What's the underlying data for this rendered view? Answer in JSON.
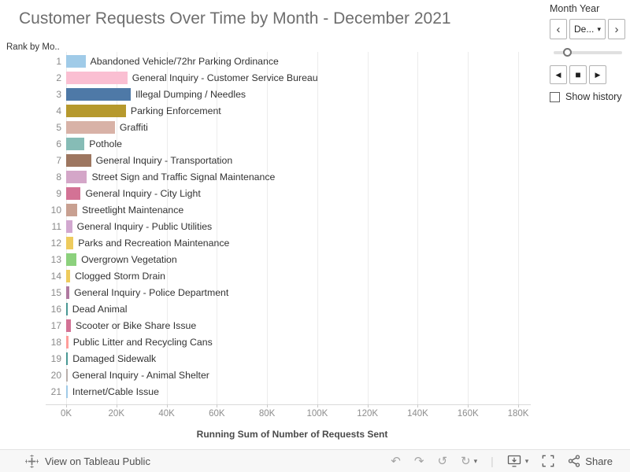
{
  "title": "Customer Requests Over Time by Month - December 2021",
  "rank_axis_label": "Rank by Mo..",
  "month_controls": {
    "label": "Month Year",
    "prev": "‹",
    "next": "›",
    "dropdown_value": "De...",
    "dropdown_caret": "▾",
    "step_back": "◀",
    "stop": "■",
    "step_forward": "▶",
    "show_history_label": "Show history",
    "show_history_checked": false
  },
  "chart_data": {
    "type": "bar",
    "orientation": "horizontal",
    "title": "Customer Requests Over Time by Month - December 2021",
    "xlabel": "Running Sum of Number of Requests Sent",
    "ylabel": "Rank by Month",
    "xlim": [
      0,
      180000
    ],
    "xtick_labels": [
      "0K",
      "20K",
      "40K",
      "60K",
      "80K",
      "100K",
      "120K",
      "140K",
      "160K",
      "180K"
    ],
    "grid": true,
    "rows": [
      {
        "rank": 1,
        "label": "Abandoned Vehicle/72hr Parking Ordinance",
        "value": 7700,
        "color": "#a0cbe8"
      },
      {
        "rank": 2,
        "label": "General Inquiry - Customer Service Bureau",
        "value": 24400,
        "color": "#fabfd2"
      },
      {
        "rank": 3,
        "label": "Illegal Dumping / Needles",
        "value": 25700,
        "color": "#4e79a7"
      },
      {
        "rank": 4,
        "label": "Parking Enforcement",
        "value": 23800,
        "color": "#b6992d"
      },
      {
        "rank": 5,
        "label": "Graffiti",
        "value": 19400,
        "color": "#d8b2a7"
      },
      {
        "rank": 6,
        "label": "Pothole",
        "value": 7300,
        "color": "#86bcb6"
      },
      {
        "rank": 7,
        "label": "General Inquiry - Transportation",
        "value": 9900,
        "color": "#9d7660"
      },
      {
        "rank": 8,
        "label": "Street Sign and Traffic Signal Maintenance",
        "value": 8300,
        "color": "#d4a6c8"
      },
      {
        "rank": 9,
        "label": "General Inquiry - City Light",
        "value": 5800,
        "color": "#d37295"
      },
      {
        "rank": 10,
        "label": "Streetlight Maintenance",
        "value": 4400,
        "color": "#c8a091"
      },
      {
        "rank": 11,
        "label": "General Inquiry - Public Utilities",
        "value": 2400,
        "color": "#d2a8d0"
      },
      {
        "rank": 12,
        "label": "Parks and Recreation Maintenance",
        "value": 2900,
        "color": "#eecb5d"
      },
      {
        "rank": 13,
        "label": "Overgrown Vegetation",
        "value": 4100,
        "color": "#8cd17d"
      },
      {
        "rank": 14,
        "label": "Clogged Storm Drain",
        "value": 1600,
        "color": "#eecb5d"
      },
      {
        "rank": 15,
        "label": "General Inquiry - Police Department",
        "value": 1300,
        "color": "#b07aa1"
      },
      {
        "rank": 16,
        "label": "Dead Animal",
        "value": 550,
        "color": "#499894"
      },
      {
        "rank": 17,
        "label": "Scooter or Bike Share Issue",
        "value": 1900,
        "color": "#d37295"
      },
      {
        "rank": 18,
        "label": "Public Litter and Recycling Cans",
        "value": 850,
        "color": "#ff9d9a"
      },
      {
        "rank": 19,
        "label": "Damaged Sidewalk",
        "value": 700,
        "color": "#499894"
      },
      {
        "rank": 20,
        "label": "General Inquiry - Animal Shelter",
        "value": 500,
        "color": "#bab0ac"
      },
      {
        "rank": 21,
        "label": "Internet/Cable Issue",
        "value": 600,
        "color": "#a0cbe8"
      }
    ]
  },
  "footer": {
    "view_on_label": "View on Tableau Public",
    "share_label": "Share",
    "icons": {
      "undo": "↶",
      "redo": "↷",
      "revert": "↺",
      "refresh": "↻",
      "caret": "▾",
      "separator": "|"
    }
  }
}
